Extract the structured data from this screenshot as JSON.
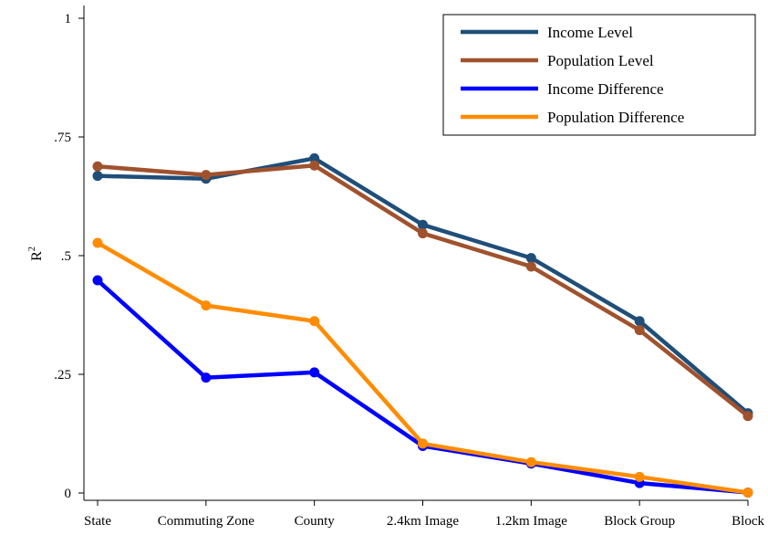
{
  "chart_data": {
    "type": "line",
    "title": "",
    "xlabel": "",
    "ylabel": "R",
    "ylabel_superscript": "2",
    "categories": [
      "State",
      "Commuting Zone",
      "County",
      "2.4km Image",
      "1.2km Image",
      "Block Group",
      "Block"
    ],
    "yticks": [
      {
        "value": 0,
        "label": "0"
      },
      {
        "value": 0.25,
        "label": ".25"
      },
      {
        "value": 0.5,
        "label": ".5"
      },
      {
        "value": 0.75,
        "label": ".75"
      },
      {
        "value": 1,
        "label": "1"
      }
    ],
    "ylim": [
      0,
      1
    ],
    "grid": false,
    "legend_position": "top-right",
    "series": [
      {
        "name": "Income Level",
        "color": "#1f4e79",
        "values": [
          0.668,
          0.662,
          0.705,
          0.565,
          0.495,
          0.362,
          0.168
        ]
      },
      {
        "name": "Population Level",
        "color": "#a0522d",
        "values": [
          0.688,
          0.67,
          0.69,
          0.547,
          0.477,
          0.343,
          0.162
        ]
      },
      {
        "name": "Income Difference",
        "color": "#0000ff",
        "values": [
          0.448,
          0.243,
          0.254,
          0.099,
          0.062,
          0.021,
          0.001
        ]
      },
      {
        "name": "Population Difference",
        "color": "#ff8c00",
        "values": [
          0.527,
          0.395,
          0.362,
          0.104,
          0.065,
          0.034,
          0.001
        ]
      }
    ]
  }
}
